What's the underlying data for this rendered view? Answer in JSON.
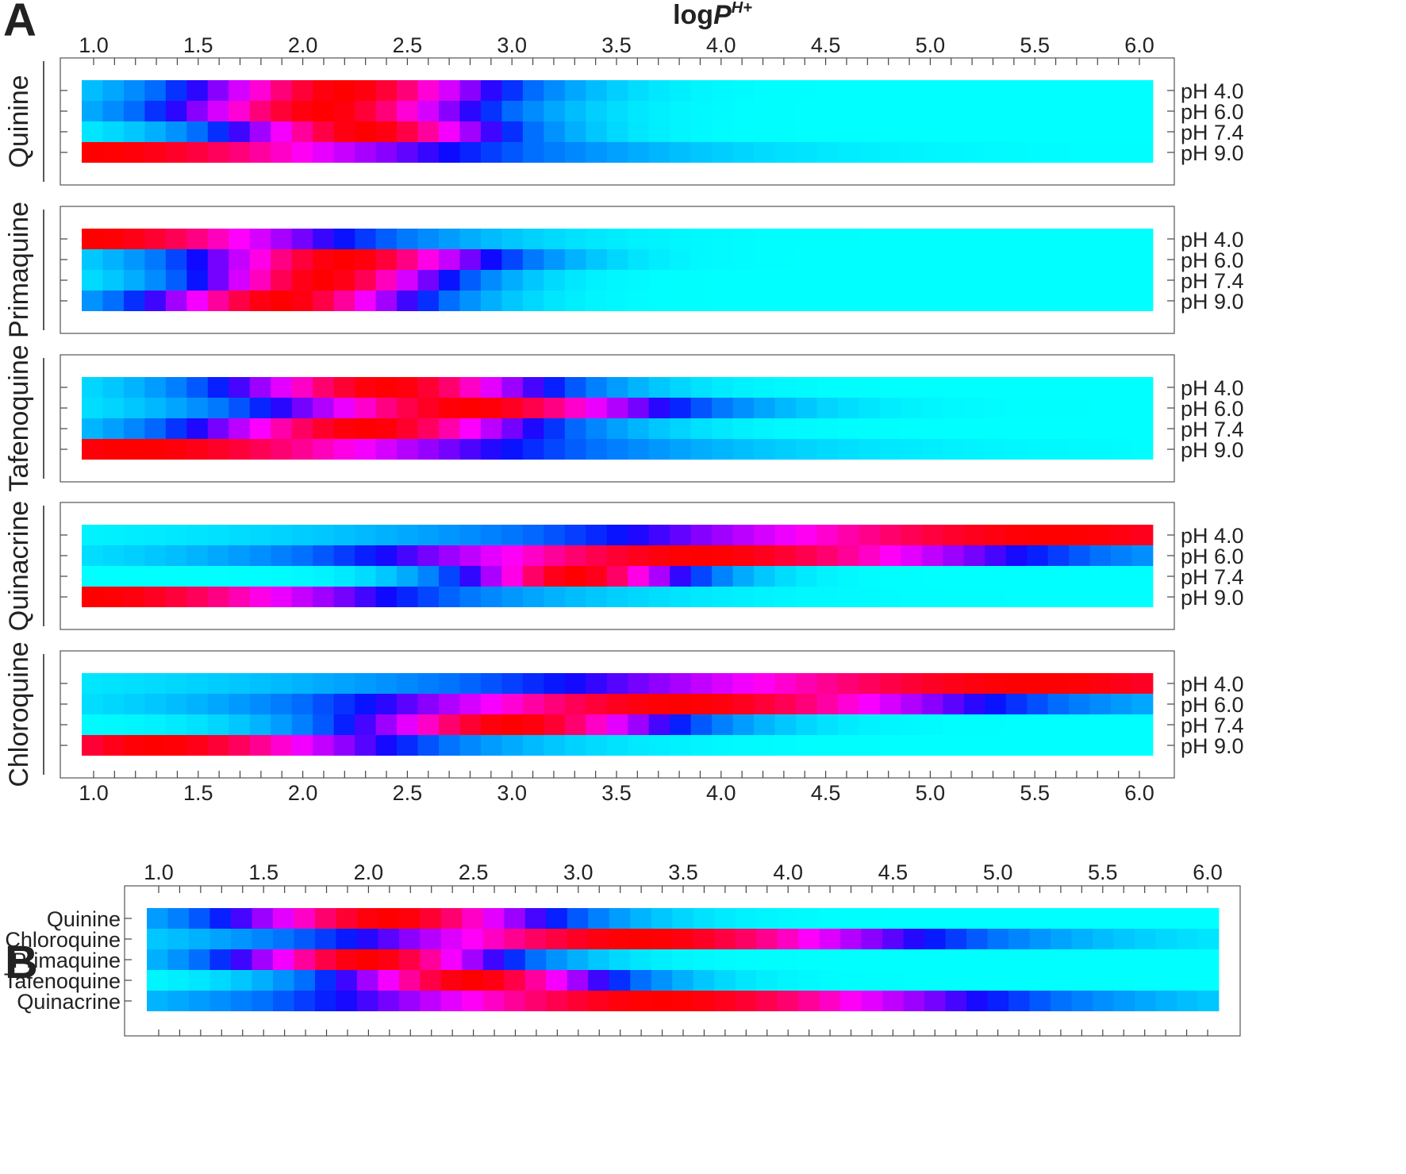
{
  "panel_a_letter": "A",
  "panel_b_letter": "B",
  "chart_data": [
    {
      "type": "heatmap",
      "panel": "A",
      "xlabel_main": "log",
      "xlabel_italic": "P",
      "xlabel_sup": "H+",
      "x": {
        "min": 1.0,
        "max": 6.0,
        "cells": 51
      },
      "x_ticks": [
        "1.0",
        "1.5",
        "2.0",
        "2.5",
        "3.0",
        "3.5",
        "4.0",
        "4.5",
        "5.0",
        "5.5",
        "6.0"
      ],
      "colormap": "0 = cyan, increasing through blue and violet to magenta and red at maximum",
      "groups": [
        {
          "name": "Quinine",
          "rows": [
            "pH 4.0",
            "pH 6.0",
            "pH 7.4",
            "pH 9.0"
          ],
          "peaks": [
            2.2,
            2.1,
            2.3,
            1.0
          ],
          "widths": [
            1.25,
            1.25,
            1.1,
            2.9
          ]
        },
        {
          "name": "Primaquine",
          "rows": [
            "pH 4.0",
            "pH 6.0",
            "pH 7.4",
            "pH 9.0"
          ],
          "peaks": [
            1.0,
            2.2,
            2.1,
            1.9
          ],
          "widths": [
            2.0,
            1.2,
            1.0,
            1.1
          ]
        },
        {
          "name": "Tafenoquine",
          "rows": [
            "pH 4.0",
            "pH 6.0",
            "pH 7.4",
            "pH 9.0"
          ],
          "peaks": [
            2.4,
            2.8,
            2.3,
            1.2
          ],
          "widths": [
            1.3,
            1.6,
            1.4,
            3.0
          ]
        },
        {
          "name": "Quinacrine",
          "rows": [
            "pH 4.0",
            "pH 6.0",
            "pH 7.4",
            "pH 9.0"
          ],
          "peaks": [
            5.6,
            3.9,
            3.3,
            1.0
          ],
          "widths": [
            3.5,
            2.6,
            0.9,
            2.4
          ]
        },
        {
          "name": "Chloroquine",
          "rows": [
            "pH 4.0",
            "pH 6.0",
            "pH 7.4",
            "pH 9.0"
          ],
          "peaks": [
            5.5,
            3.8,
            3.0,
            1.3
          ],
          "widths": [
            3.8,
            2.5,
            1.3,
            1.9
          ]
        }
      ]
    },
    {
      "type": "heatmap",
      "panel": "B",
      "xlabel_main": "log ",
      "xlabel_italic": "P",
      "xlabel_sup": "H+",
      "x": {
        "min": 1.0,
        "max": 6.0,
        "cells": 51
      },
      "x_ticks": [
        "1.0",
        "1.5",
        "2.0",
        "2.5",
        "3.0",
        "3.5",
        "4.0",
        "4.5",
        "5.0",
        "5.5",
        "6.0"
      ],
      "rows": [
        "Quinine",
        "Chloroquine",
        "Primaquine",
        "Tafenoquine",
        "Quinacrine"
      ],
      "peaks": [
        2.1,
        3.3,
        2.0,
        2.5,
        3.4
      ],
      "widths": [
        1.3,
        2.3,
        1.1,
        1.1,
        2.6
      ]
    }
  ]
}
